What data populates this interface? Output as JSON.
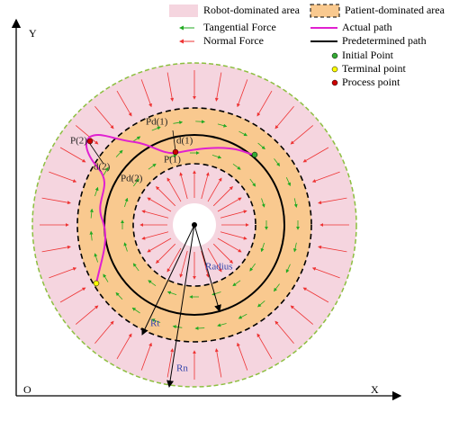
{
  "legend": {
    "robot_area": "Robot-dominated area",
    "patient_area": "Patient-dominated area",
    "tangential": "Tangential Force",
    "normal": "Normal Force",
    "actual": "Actual path",
    "predetermined": "Predetermined path",
    "initial": "Initial Point",
    "terminal": "Terminal point",
    "process": "Process point"
  },
  "axes": {
    "y": "Y",
    "x": "X",
    "origin": "O"
  },
  "labels": {
    "p2": "P(2)",
    "d2": "d(2)",
    "pd2": "Pd(2)",
    "pd1": "Pd(1)",
    "d1": "d(1)",
    "p1": "P(1)",
    "radius": "Radius",
    "rt": "Rt",
    "rn": "Rn"
  }
}
